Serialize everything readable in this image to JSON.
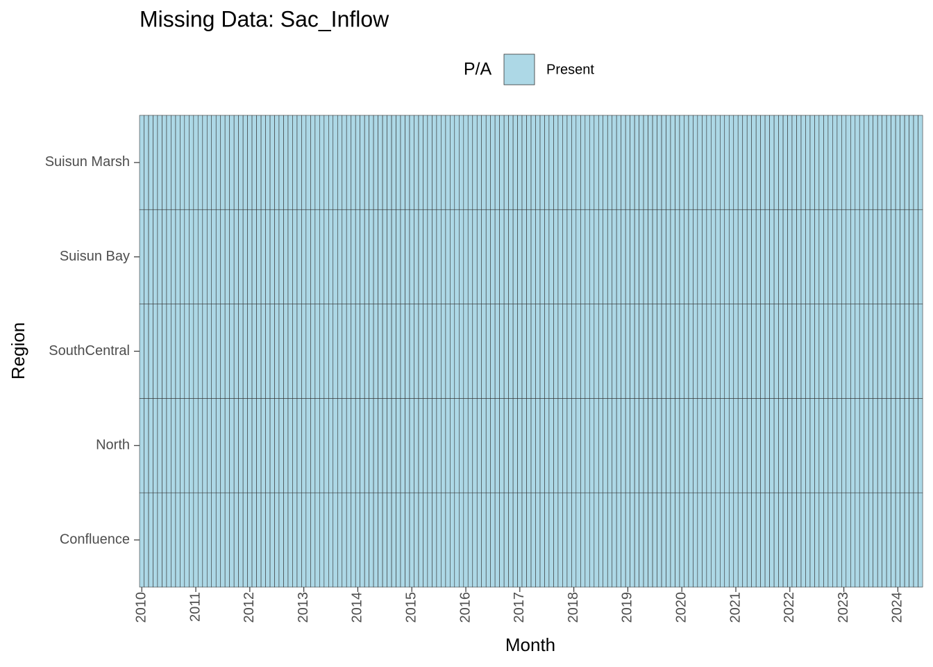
{
  "chart_data": {
    "type": "tile",
    "title": "Missing Data: Sac_Inflow",
    "x_label": "Month",
    "y_label": "Region",
    "legend_title": "P/A",
    "series": [
      {
        "name": "Present",
        "color": "#add8e6"
      }
    ],
    "categories": [
      "Confluence",
      "North",
      "SouthCentral",
      "Suisun Bay",
      "Suisun Marsh"
    ],
    "x": [
      2010,
      2010.083,
      2010.167,
      2010.25,
      2010.333,
      2010.417,
      2010.5,
      2010.583,
      2010.667,
      2010.75,
      2010.833,
      2010.917,
      2011,
      2011.083,
      2011.167,
      2011.25,
      2011.333,
      2011.417,
      2011.5,
      2011.583,
      2011.667,
      2011.75,
      2011.833,
      2011.917,
      2012,
      2012.083,
      2012.167,
      2012.25,
      2012.333,
      2012.417,
      2012.5,
      2012.583,
      2012.667,
      2012.75,
      2012.833,
      2012.917,
      2013,
      2013.083,
      2013.167,
      2013.25,
      2013.333,
      2013.417,
      2013.5,
      2013.583,
      2013.667,
      2013.75,
      2013.833,
      2013.917,
      2014,
      2014.083,
      2014.167,
      2014.25,
      2014.333,
      2014.417,
      2014.5,
      2014.583,
      2014.667,
      2014.75,
      2014.833,
      2014.917,
      2015,
      2015.083,
      2015.167,
      2015.25,
      2015.333,
      2015.417,
      2015.5,
      2015.583,
      2015.667,
      2015.75,
      2015.833,
      2015.917,
      2016,
      2016.083,
      2016.167,
      2016.25,
      2016.333,
      2016.417,
      2016.5,
      2016.583,
      2016.667,
      2016.75,
      2016.833,
      2016.917,
      2017,
      2017.083,
      2017.167,
      2017.25,
      2017.333,
      2017.417,
      2017.5,
      2017.583,
      2017.667,
      2017.75,
      2017.833,
      2017.917,
      2018,
      2018.083,
      2018.167,
      2018.25,
      2018.333,
      2018.417,
      2018.5,
      2018.583,
      2018.667,
      2018.75,
      2018.833,
      2018.917,
      2019,
      2019.083,
      2019.167,
      2019.25,
      2019.333,
      2019.417,
      2019.5,
      2019.583,
      2019.667,
      2019.75,
      2019.833,
      2019.917,
      2020,
      2020.083,
      2020.167,
      2020.25,
      2020.333,
      2020.417,
      2020.5,
      2020.583,
      2020.667,
      2020.75,
      2020.833,
      2020.917,
      2021,
      2021.083,
      2021.167,
      2021.25,
      2021.333,
      2021.417,
      2021.5,
      2021.583,
      2021.667,
      2021.75,
      2021.833,
      2021.917,
      2022,
      2022.083,
      2022.167,
      2022.25,
      2022.333,
      2022.417,
      2022.5,
      2022.583,
      2022.667,
      2022.75,
      2022.833,
      2022.917,
      2023,
      2023.083,
      2023.167,
      2023.25,
      2023.333,
      2023.417,
      2023.5,
      2023.583,
      2023.667,
      2023.75,
      2023.833,
      2023.917,
      2024,
      2024.083,
      2024.167,
      2024.25,
      2024.333,
      2024.417
    ],
    "xlim": [
      2009.958,
      2024.458
    ],
    "xticks": [
      2010,
      2011,
      2012,
      2013,
      2014,
      2015,
      2016,
      2017,
      2018,
      2019,
      2020,
      2021,
      2022,
      2023,
      2024
    ]
  }
}
